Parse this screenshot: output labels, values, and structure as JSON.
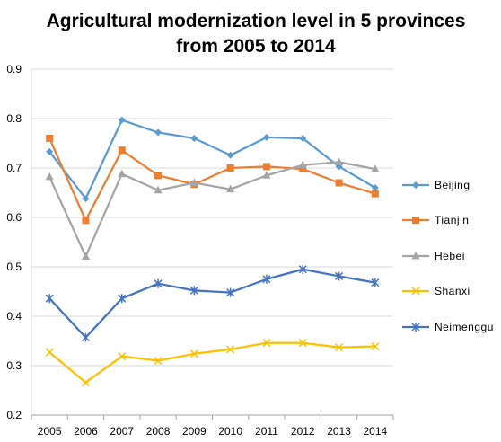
{
  "chart_data": {
    "type": "line",
    "title": [
      "Agricultural  modernization  level in 5 provinces",
      "from 2005 to 2014"
    ],
    "xlabel": "",
    "ylabel": "",
    "categories": [
      "2005",
      "2006",
      "2007",
      "2008",
      "2009",
      "2010",
      "2011",
      "2012",
      "2013",
      "2014"
    ],
    "ylim": [
      0.2,
      0.9
    ],
    "yticks": [
      "0.2",
      "0.3",
      "0.4",
      "0.5",
      "0.6",
      "0.7",
      "0.8",
      "0.9"
    ],
    "grid": "horizontal",
    "legend_position": "right",
    "series": [
      {
        "name": "Beijing",
        "color": "#5B9BD5",
        "marker": "diamond",
        "values": [
          0.733,
          0.638,
          0.797,
          0.772,
          0.76,
          0.726,
          0.762,
          0.76,
          0.703,
          0.66
        ]
      },
      {
        "name": "Tianjin",
        "color": "#ED7D31",
        "marker": "square",
        "values": [
          0.76,
          0.594,
          0.736,
          0.685,
          0.667,
          0.7,
          0.703,
          0.698,
          0.67,
          0.648
        ]
      },
      {
        "name": "Hebei",
        "color": "#A5A5A5",
        "marker": "triangle",
        "values": [
          0.682,
          0.521,
          0.688,
          0.655,
          0.67,
          0.657,
          0.685,
          0.706,
          0.712,
          0.698
        ]
      },
      {
        "name": "Shanxi",
        "color": "#FFC000",
        "marker": "x",
        "values": [
          0.327,
          0.266,
          0.319,
          0.31,
          0.324,
          0.333,
          0.346,
          0.346,
          0.337,
          0.339
        ]
      },
      {
        "name": "Neimenggu",
        "color": "#4472C4",
        "marker": "star",
        "values": [
          0.436,
          0.357,
          0.436,
          0.466,
          0.452,
          0.448,
          0.475,
          0.495,
          0.481,
          0.468
        ]
      }
    ]
  }
}
